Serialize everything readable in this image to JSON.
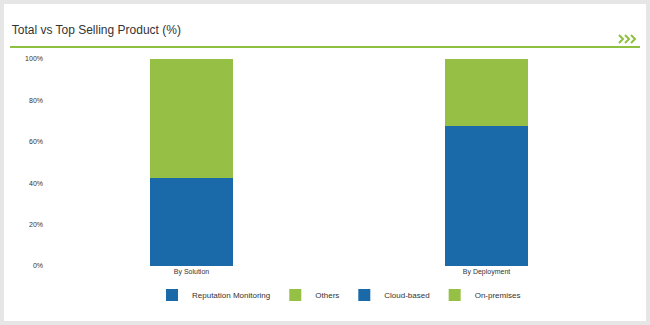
{
  "chart_data": {
    "type": "bar",
    "title": "Total vs Top Selling Product (%)",
    "categories": [
      "By Solution",
      "By Deployment"
    ],
    "series": [
      {
        "name": "Reputation Monitoring",
        "color": "#1a6aaa",
        "values": [
          42.5,
          null
        ]
      },
      {
        "name": "Others",
        "color": "#96c045",
        "values": [
          57.5,
          null
        ]
      },
      {
        "name": "Cloud-based",
        "color": "#1a6aaa",
        "values": [
          null,
          67.5
        ]
      },
      {
        "name": "On-premises",
        "color": "#96c045",
        "values": [
          null,
          32.5
        ]
      }
    ],
    "stacked": true,
    "ylim": [
      0,
      100
    ],
    "yticks": [
      {
        "value": 0,
        "label": "0%"
      },
      {
        "value": 20,
        "label": "20%"
      },
      {
        "value": 40,
        "label": "40%"
      },
      {
        "value": 60,
        "label": "60%"
      },
      {
        "value": 80,
        "label": "80%"
      },
      {
        "value": 100,
        "label": "100%"
      }
    ],
    "grid": false,
    "legend": "bottom"
  }
}
